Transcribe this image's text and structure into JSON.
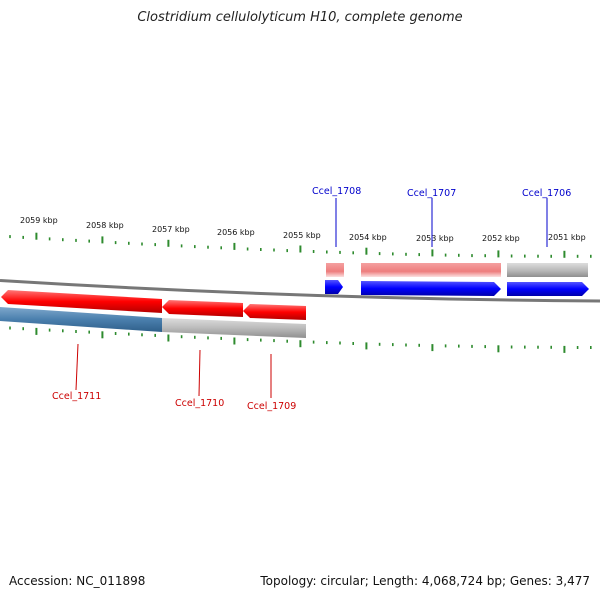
{
  "title": "Clostridium cellulolyticum H10, complete genome",
  "footer": {
    "accession": "Accession: NC_011898",
    "info": "Topology: circular; Length: 4,068,724 bp; Genes: 3,477"
  },
  "colors": {
    "forward_cds": "#0000ff",
    "forward_gene": "#f08080",
    "reverse_cds": "#ff0000",
    "reverse_gene": "#4682b4",
    "gray_gene": "#bbbbbb",
    "tick": "#2e8b2e",
    "backbone": "#777777",
    "label_forward": "#0000cc",
    "label_reverse": "#cc0000"
  },
  "scale_labels": [
    "2059 kbp",
    "2058 kbp",
    "2057 kbp",
    "2056 kbp",
    "2055 kbp",
    "2054 kbp",
    "2053 kbp",
    "2052 kbp",
    "2051 kbp"
  ],
  "genes": {
    "forward": [
      "Ccel_1708",
      "Ccel_1707",
      "Ccel_1706"
    ],
    "reverse": [
      "Ccel_1711",
      "Ccel_1710",
      "Ccel_1709"
    ]
  }
}
